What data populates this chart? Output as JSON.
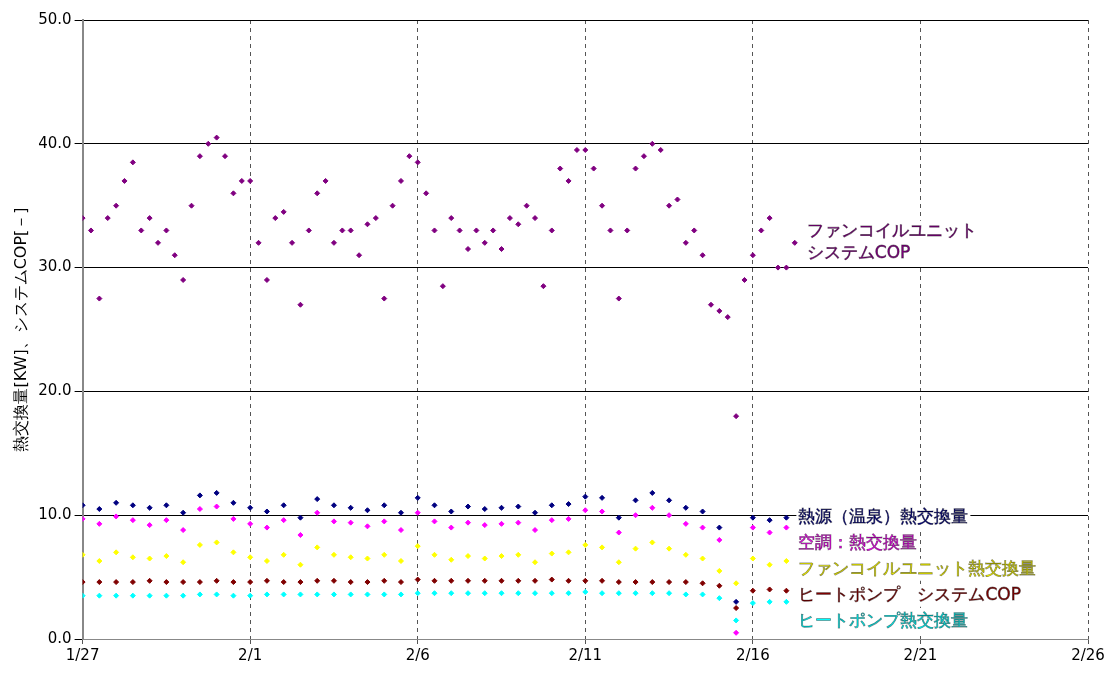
{
  "chart_data": {
    "type": "scatter",
    "ylabel": "熱交換量[KW]、システムCOP[－]",
    "xlim": [
      "--01-27",
      "--02-26"
    ],
    "xticks": [
      {
        "value": "--01-27",
        "label": "1/27"
      },
      {
        "value": "--02-01",
        "label": "2/1"
      },
      {
        "value": "--02-06",
        "label": "2/6"
      },
      {
        "value": "--02-11",
        "label": "2/11"
      },
      {
        "value": "--02-16",
        "label": "2/16"
      },
      {
        "value": "--02-21",
        "label": "2/21"
      },
      {
        "value": "--02-26",
        "label": "2/26"
      }
    ],
    "ylim": [
      0,
      50
    ],
    "yticks": [
      {
        "value": 0,
        "label": "0.0"
      },
      {
        "value": 10,
        "label": "10.0"
      },
      {
        "value": 20,
        "label": "20.0"
      },
      {
        "value": 30,
        "label": "30.0"
      },
      {
        "value": 40,
        "label": "40.0"
      },
      {
        "value": 50,
        "label": "50.0"
      }
    ],
    "grid": true,
    "marker": "diamond",
    "x": [
      "--01-27T00:00",
      "--01-27T12:00",
      "--01-28T00:00",
      "--01-28T12:00",
      "--01-29T00:00",
      "--01-29T12:00",
      "--01-30T00:00",
      "--01-30T12:00",
      "--01-31T00:00",
      "--01-31T12:00",
      "--02-01T00:00",
      "--02-01T12:00",
      "--02-02T00:00",
      "--02-02T12:00",
      "--02-03T00:00",
      "--02-03T12:00",
      "--02-04T00:00",
      "--02-04T12:00",
      "--02-05T00:00",
      "--02-05T12:00",
      "--02-06T00:00",
      "--02-06T12:00",
      "--02-07T00:00",
      "--02-07T12:00",
      "--02-08T00:00",
      "--02-08T12:00",
      "--02-09T00:00",
      "--02-09T12:00",
      "--02-10T00:00",
      "--02-10T12:00",
      "--02-11T00:00",
      "--02-11T12:00",
      "--02-12T00:00",
      "--02-12T12:00",
      "--02-13T00:00",
      "--02-13T12:00",
      "--02-14T00:00",
      "--02-14T12:00",
      "--02-15T00:00",
      "--02-15T12:00",
      "--02-16T00:00",
      "--02-16T12:00",
      "--02-17T00:00"
    ],
    "series": [
      {
        "name": "ファンコイルユニットシステムCOP",
        "color": "#800080",
        "x": [
          "--01-27T00:00",
          "--01-27T06:00",
          "--01-27T12:00",
          "--01-27T18:00",
          "--01-28T00:00",
          "--01-28T06:00",
          "--01-28T12:00",
          "--01-28T18:00",
          "--01-29T00:00",
          "--01-29T06:00",
          "--01-29T12:00",
          "--01-29T18:00",
          "--01-30T00:00",
          "--01-30T06:00",
          "--01-30T12:00",
          "--01-30T18:00",
          "--01-31T00:00",
          "--01-31T06:00",
          "--01-31T12:00",
          "--01-31T18:00",
          "--02-01T00:00",
          "--02-01T06:00",
          "--02-01T12:00",
          "--02-01T18:00",
          "--02-02T00:00",
          "--02-02T06:00",
          "--02-02T12:00",
          "--02-02T18:00",
          "--02-03T00:00",
          "--02-03T06:00",
          "--02-03T12:00",
          "--02-03T18:00",
          "--02-04T00:00",
          "--02-04T06:00",
          "--02-04T12:00",
          "--02-04T18:00",
          "--02-05T00:00",
          "--02-05T06:00",
          "--02-05T12:00",
          "--02-05T18:00",
          "--02-06T00:00",
          "--02-06T06:00",
          "--02-06T12:00",
          "--02-06T18:00",
          "--02-07T00:00",
          "--02-07T06:00",
          "--02-07T12:00",
          "--02-07T18:00",
          "--02-08T00:00",
          "--02-08T06:00",
          "--02-08T12:00",
          "--02-08T18:00",
          "--02-09T00:00",
          "--02-09T06:00",
          "--02-09T12:00",
          "--02-09T18:00",
          "--02-10T00:00",
          "--02-10T06:00",
          "--02-10T12:00",
          "--02-10T18:00",
          "--02-11T00:00",
          "--02-11T06:00",
          "--02-11T12:00",
          "--02-11T18:00",
          "--02-12T00:00",
          "--02-12T06:00",
          "--02-12T12:00",
          "--02-12T18:00",
          "--02-13T00:00",
          "--02-13T06:00",
          "--02-13T12:00",
          "--02-13T18:00",
          "--02-14T00:00",
          "--02-14T06:00",
          "--02-14T12:00",
          "--02-14T18:00",
          "--02-15T00:00",
          "--02-15T06:00",
          "--02-15T12:00",
          "--02-15T18:00",
          "--02-16T00:00",
          "--02-16T06:00",
          "--02-16T12:00",
          "--02-16T18:00",
          "--02-17T00:00",
          "--02-17T06:00"
        ],
        "values": [
          34,
          33,
          27.5,
          34,
          35,
          37,
          38.5,
          33,
          34,
          32,
          33,
          31,
          29,
          35,
          39,
          40,
          40.5,
          39,
          36,
          37,
          37,
          32,
          29,
          34,
          34.5,
          32,
          27,
          33,
          36,
          37,
          32,
          33,
          33,
          31,
          33.5,
          34,
          27.5,
          35,
          37,
          39,
          38.5,
          36,
          33,
          28.5,
          34,
          33,
          31.5,
          33,
          32,
          33,
          31.5,
          34,
          33.5,
          35,
          34,
          28.5,
          33,
          38,
          37,
          39.5,
          39.5,
          38,
          35,
          33,
          27.5,
          33,
          38,
          39,
          40,
          39.5,
          35,
          35.5,
          32,
          33,
          31,
          27,
          26.5,
          26,
          18,
          29,
          31,
          33,
          34,
          30,
          30,
          32
        ]
      },
      {
        "name": "熱源（温泉）熱交換量",
        "color": "#000080",
        "values": [
          10.8,
          10.5,
          11,
          10.8,
          10.6,
          10.8,
          10.2,
          11.6,
          11.8,
          11,
          10.6,
          10.3,
          10.8,
          9.8,
          11.3,
          10.8,
          10.6,
          10.4,
          10.8,
          10.2,
          11.4,
          10.8,
          10.3,
          10.7,
          10.5,
          10.6,
          10.7,
          10.2,
          10.8,
          10.9,
          11.5,
          11.4,
          9.8,
          11.2,
          11.8,
          11.2,
          10.6,
          10.3,
          9,
          3,
          9.8,
          9.6,
          9.8
        ]
      },
      {
        "name": "空調：熱交換量",
        "color": "#ff00ff",
        "values": [
          9.7,
          9.3,
          9.9,
          9.6,
          9.2,
          9.6,
          8.8,
          10.5,
          10.7,
          9.7,
          9.3,
          9,
          9.6,
          8.4,
          10.2,
          9.5,
          9.4,
          9.1,
          9.5,
          8.8,
          10.2,
          9.5,
          9,
          9.4,
          9.2,
          9.3,
          9.4,
          8.8,
          9.6,
          9.7,
          10.4,
          10.3,
          8.6,
          10,
          10.6,
          10,
          9.3,
          9,
          8,
          0.5,
          9,
          8.6,
          9
        ]
      },
      {
        "name": "ファンコイルユニット熱交換量",
        "color": "#ffff00",
        "values": [
          6.8,
          6.3,
          7,
          6.6,
          6.5,
          6.7,
          6.2,
          7.6,
          7.8,
          7,
          6.6,
          6.3,
          6.8,
          6,
          7.4,
          6.8,
          6.6,
          6.5,
          6.8,
          6.3,
          7.5,
          6.8,
          6.4,
          6.7,
          6.5,
          6.7,
          6.8,
          6.2,
          6.9,
          7,
          7.6,
          7.4,
          6.2,
          7.3,
          7.8,
          7.3,
          6.8,
          6.5,
          5.5,
          4.5,
          6.5,
          6,
          6.3
        ]
      },
      {
        "name": "ヒートポンプ　システムCOP",
        "color": "#800000",
        "values": [
          4.6,
          4.6,
          4.6,
          4.6,
          4.7,
          4.6,
          4.6,
          4.6,
          4.7,
          4.6,
          4.6,
          4.7,
          4.6,
          4.6,
          4.7,
          4.7,
          4.6,
          4.6,
          4.7,
          4.6,
          4.8,
          4.7,
          4.7,
          4.7,
          4.7,
          4.7,
          4.7,
          4.7,
          4.8,
          4.7,
          4.7,
          4.7,
          4.6,
          4.6,
          4.6,
          4.6,
          4.6,
          4.5,
          4.3,
          2.5,
          3.9,
          4,
          3.9
        ]
      },
      {
        "name": "ヒートポンプ熱交換量",
        "color": "#00ffff",
        "values": [
          3.5,
          3.5,
          3.5,
          3.5,
          3.5,
          3.5,
          3.5,
          3.6,
          3.6,
          3.5,
          3.5,
          3.6,
          3.6,
          3.6,
          3.6,
          3.6,
          3.6,
          3.6,
          3.6,
          3.6,
          3.7,
          3.7,
          3.7,
          3.7,
          3.7,
          3.7,
          3.7,
          3.7,
          3.7,
          3.7,
          3.8,
          3.7,
          3.7,
          3.7,
          3.7,
          3.7,
          3.6,
          3.6,
          3.3,
          1.5,
          2.9,
          3,
          3
        ]
      }
    ]
  }
}
